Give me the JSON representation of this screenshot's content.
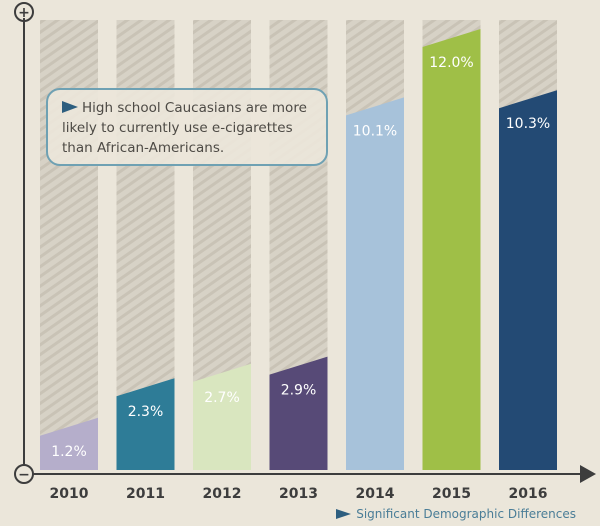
{
  "chart_data": {
    "type": "bar",
    "title": "",
    "xlabel": "",
    "ylabel": "",
    "ylim": [
      0,
      12.5
    ],
    "categories": [
      "2010",
      "2011",
      "2012",
      "2013",
      "2014",
      "2015",
      "2016"
    ],
    "values": [
      1.2,
      2.3,
      2.7,
      2.9,
      10.1,
      12.0,
      10.3
    ],
    "value_labels": [
      "1.2%",
      "2.3%",
      "2.7%",
      "2.9%",
      "10.1%",
      "12.0%",
      "10.3%"
    ],
    "colors": [
      "#b5aecb",
      "#2e7c97",
      "#d9e6bf",
      "#574a77",
      "#a7c2da",
      "#9fbf47",
      "#234a74"
    ],
    "label_colors": [
      "#ffffff",
      "#ffffff",
      "#ffffff",
      "#ffffff",
      "#ffffff",
      "#ffffff",
      "#ffffff"
    ],
    "grid": false,
    "y_axis_top_symbol": "+",
    "y_axis_bottom_symbol": "−"
  },
  "callout": {
    "text": "High school Caucasians are more likely to currently use e-cigarettes than African-Americans."
  },
  "footnote": {
    "text": "Significant Demographic Differences"
  }
}
